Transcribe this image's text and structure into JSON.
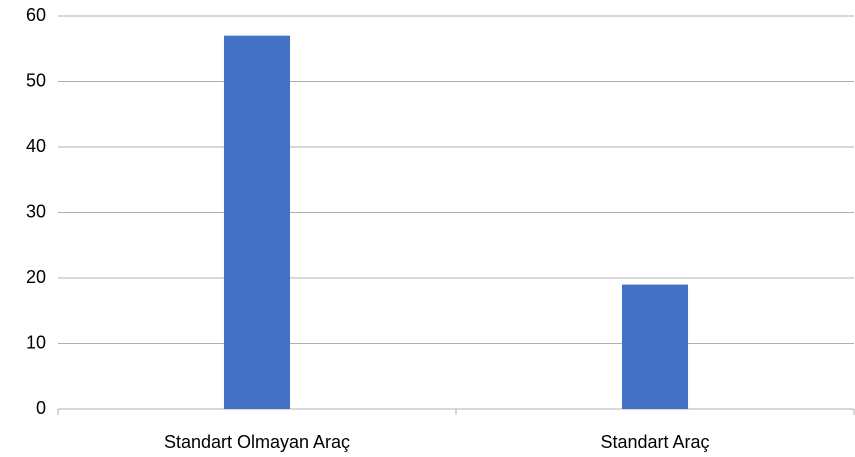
{
  "chart_data": {
    "type": "bar",
    "categories": [
      "Standart Olmayan Araç",
      "Standart Araç"
    ],
    "values": [
      57,
      19
    ],
    "color": "#4472c4",
    "ylim": [
      0,
      60
    ],
    "yticks": [
      0,
      10,
      20,
      30,
      40,
      50,
      60
    ],
    "grid": true
  }
}
